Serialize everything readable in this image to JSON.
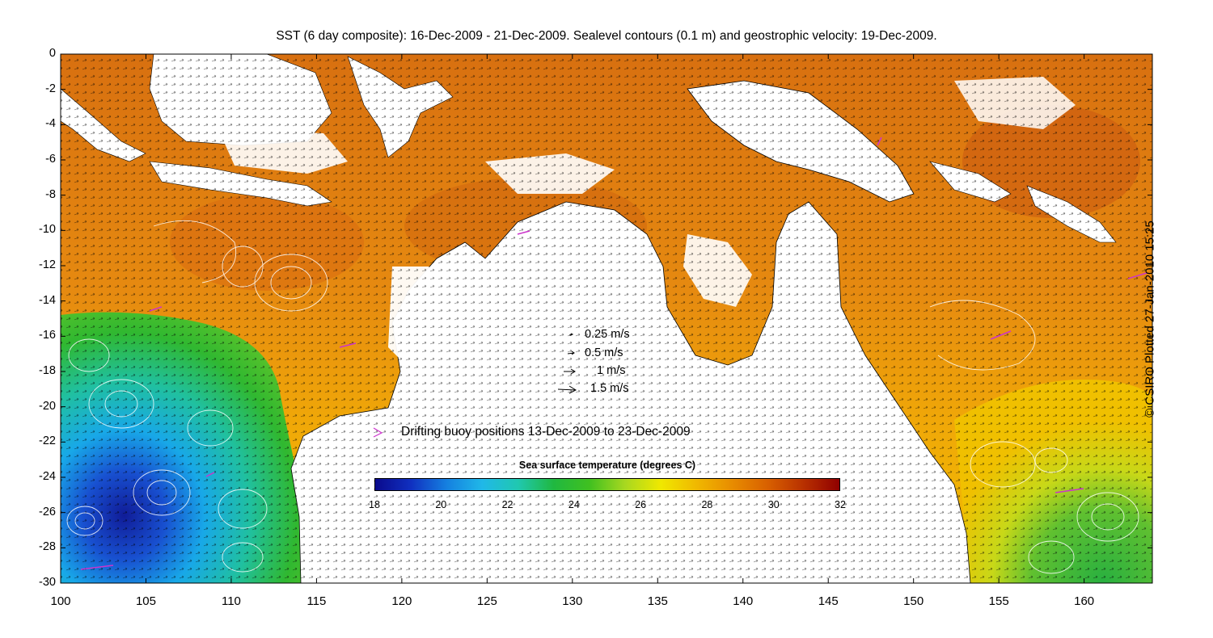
{
  "title": "SST (6 day composite): 16-Dec-2009 - 21-Dec-2009. Sealevel contours (0.1 m) and geostrophic velocity: 19-Dec-2009.",
  "credit": "© CSIRO Plotted 27-Jan-2010 15:25",
  "axes": {
    "y_ticks": [
      "0",
      "-2",
      "-4",
      "-6",
      "-8",
      "-10",
      "-12",
      "-14",
      "-16",
      "-18",
      "-20",
      "-22",
      "-24",
      "-26",
      "-28",
      "-30"
    ],
    "x_ticks": [
      "100",
      "105",
      "110",
      "115",
      "120",
      "125",
      "130",
      "135",
      "140",
      "145",
      "150",
      "155",
      "160"
    ],
    "lon_range": [
      100,
      164
    ],
    "lat_range": [
      -30,
      0
    ]
  },
  "velocity_legend": [
    {
      "label": "0.25 m/s",
      "speed": 0.25
    },
    {
      "label": "0.5 m/s",
      "speed": 0.5
    },
    {
      "label": "1 m/s",
      "speed": 1
    },
    {
      "label": "1.5 m/s",
      "speed": 1.5
    }
  ],
  "buoy_legend": {
    "label": "Drifting buoy positions 13-Dec-2009 to 23-Dec-2009",
    "color": "#cc33cc"
  },
  "colorbar": {
    "title": "Sea surface temperature (degrees C)",
    "ticks": [
      "18",
      "20",
      "22",
      "24",
      "26",
      "28",
      "30",
      "32"
    ],
    "range": [
      18,
      32
    ],
    "stops": [
      "#0a0a8c",
      "#1030c0",
      "#1580e0",
      "#20b8e8",
      "#20c8b0",
      "#20b840",
      "#40c020",
      "#a8d820",
      "#f0e800",
      "#f0b800",
      "#e88c00",
      "#d86000",
      "#b83000",
      "#900000"
    ]
  },
  "colors": {
    "land": "#ffffff",
    "coast": "#000000",
    "contour": "#ffffff",
    "warm_sst": "#e07810",
    "cool_sst": "#28b838",
    "cold_sst": "#1880e0"
  }
}
